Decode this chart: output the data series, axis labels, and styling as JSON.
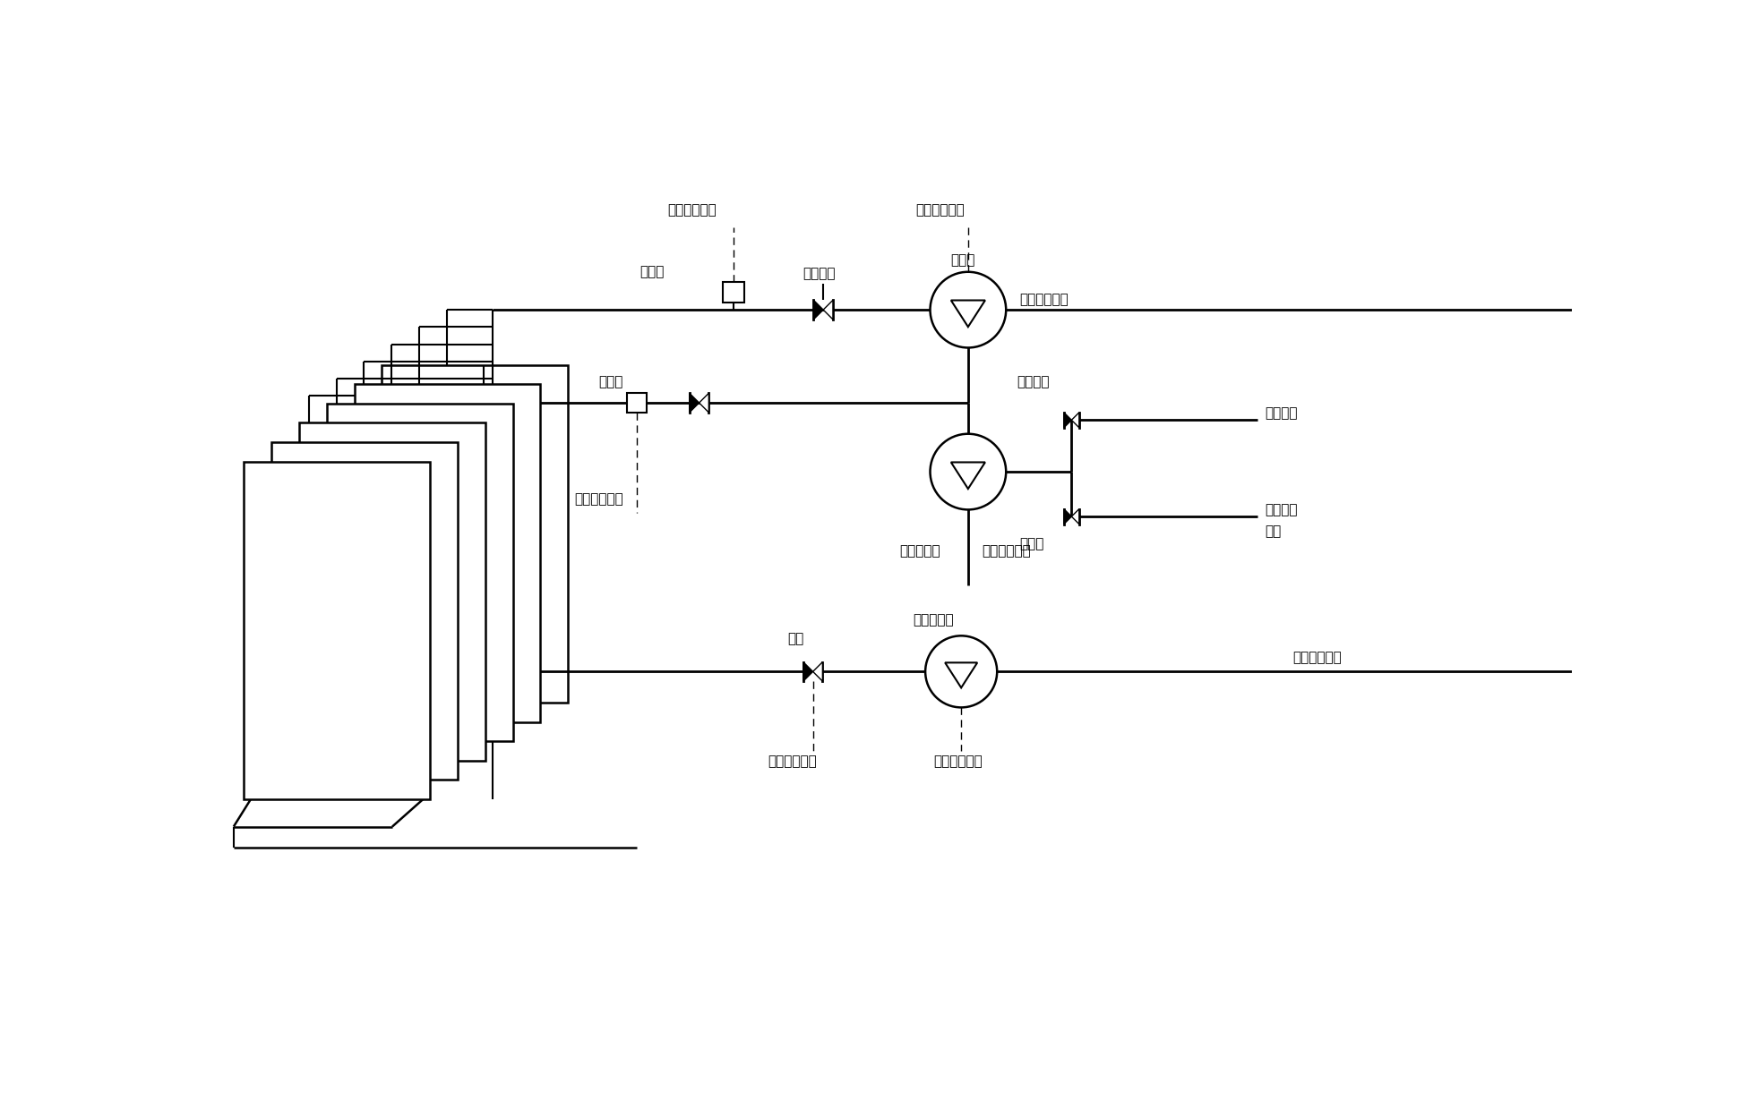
{
  "bg_color": "#ffffff",
  "fig_width": 19.55,
  "fig_height": 12.48,
  "labels": {
    "ctrl_top1": "接入控制中心",
    "ctrl_top2": "接入控制中心",
    "pressure1": "压力计",
    "water_valve": "产水阀门",
    "pump1_label": "产水泵",
    "main_pipe": "接入产水总管",
    "backwash_valve": "反冲洗阀",
    "pressure2": "压力计",
    "ctrl_mid": "接入控制中心",
    "water_tank": "接入水箱",
    "add_drug": "接入加药",
    "system": "系统",
    "drug_valve": "药洗阀",
    "ctrl_bw_left": "接入控制中",
    "ctrl_bw_right": "接入控制中心",
    "valve_aer": "阀门",
    "vacuum_pump": "真空曝气泵",
    "air_system": "接入空压系统",
    "ctrl_aer_left": "接入控制中心",
    "ctrl_aer_right": "接入控制中心"
  }
}
